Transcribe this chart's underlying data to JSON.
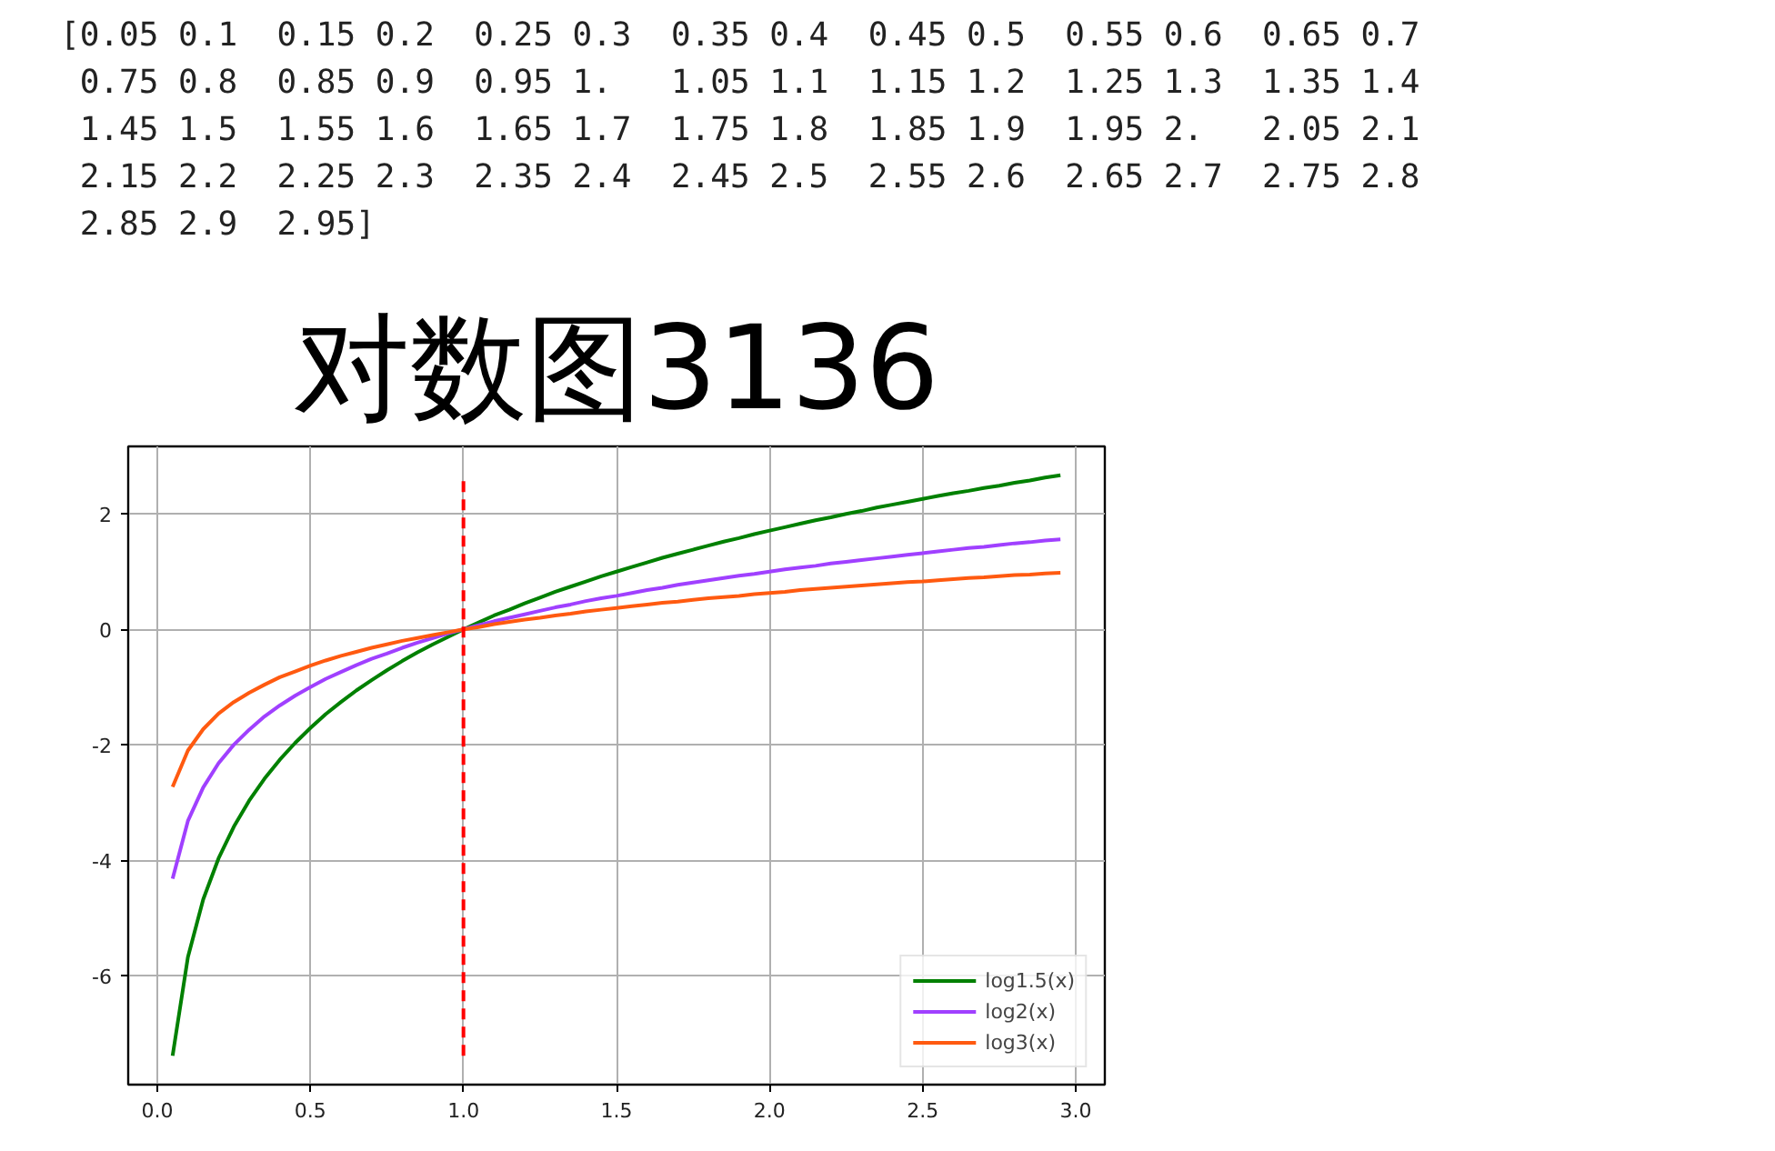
{
  "chart_data": {
    "type": "line",
    "title": "对数图3136",
    "annotations": [
      "[0.05 0.1  0.15 0.2  0.25 0.3  0.35 0.4  0.45 0.5  0.55 0.6  0.65 0.7",
      " 0.75 0.8  0.85 0.9  0.95 1.   1.05 1.1  1.15 1.2  1.25 1.3  1.35 1.4",
      " 1.45 1.5  1.55 1.6  1.65 1.7  1.75 1.8  1.85 1.9  1.95 2.   2.05 2.1",
      " 2.15 2.2  2.25 2.3  2.35 2.4  2.45 2.5  2.55 2.6  2.65 2.7  2.75 2.8",
      " 2.85 2.9  2.95]"
    ],
    "x": [
      0.05,
      0.1,
      0.15,
      0.2,
      0.25,
      0.3,
      0.35,
      0.4,
      0.45,
      0.5,
      0.55,
      0.6,
      0.65,
      0.7,
      0.75,
      0.8,
      0.85,
      0.9,
      0.95,
      1.0,
      1.05,
      1.1,
      1.15,
      1.2,
      1.25,
      1.3,
      1.35,
      1.4,
      1.45,
      1.5,
      1.55,
      1.6,
      1.65,
      1.7,
      1.75,
      1.8,
      1.85,
      1.9,
      1.95,
      2.0,
      2.05,
      2.1,
      2.15,
      2.2,
      2.25,
      2.3,
      2.35,
      2.4,
      2.45,
      2.5,
      2.55,
      2.6,
      2.65,
      2.7,
      2.75,
      2.8,
      2.85,
      2.9,
      2.95
    ],
    "series": [
      {
        "name": "log1.5(x)",
        "color": "#008000",
        "values": [
          -7.39,
          -5.68,
          -4.68,
          -3.97,
          -3.42,
          -2.97,
          -2.59,
          -2.26,
          -1.97,
          -1.71,
          -1.47,
          -1.26,
          -1.06,
          -0.88,
          -0.71,
          -0.55,
          -0.4,
          -0.26,
          -0.13,
          0,
          0.12,
          0.24,
          0.34,
          0.45,
          0.55,
          0.65,
          0.74,
          0.83,
          0.92,
          1.0,
          1.08,
          1.16,
          1.24,
          1.31,
          1.38,
          1.45,
          1.52,
          1.58,
          1.65,
          1.71,
          1.77,
          1.83,
          1.89,
          1.94,
          2.0,
          2.05,
          2.11,
          2.16,
          2.21,
          2.26,
          2.31,
          2.36,
          2.4,
          2.45,
          2.49,
          2.54,
          2.58,
          2.63,
          2.67
        ]
      },
      {
        "name": "log2(x)",
        "color": "#a040ff",
        "values": [
          -4.32,
          -3.32,
          -2.74,
          -2.32,
          -2.0,
          -1.74,
          -1.51,
          -1.32,
          -1.15,
          -1.0,
          -0.86,
          -0.74,
          -0.62,
          -0.51,
          -0.42,
          -0.32,
          -0.23,
          -0.15,
          -0.07,
          0,
          0.07,
          0.14,
          0.2,
          0.26,
          0.32,
          0.38,
          0.43,
          0.49,
          0.54,
          0.58,
          0.63,
          0.68,
          0.72,
          0.77,
          0.81,
          0.85,
          0.89,
          0.93,
          0.96,
          1.0,
          1.04,
          1.07,
          1.1,
          1.14,
          1.17,
          1.2,
          1.23,
          1.26,
          1.29,
          1.32,
          1.35,
          1.38,
          1.41,
          1.43,
          1.46,
          1.49,
          1.51,
          1.54,
          1.56
        ]
      },
      {
        "name": "log3(x)",
        "color": "#ff5a10",
        "values": [
          -2.73,
          -2.1,
          -1.73,
          -1.46,
          -1.26,
          -1.1,
          -0.96,
          -0.83,
          -0.73,
          -0.63,
          -0.54,
          -0.46,
          -0.39,
          -0.32,
          -0.26,
          -0.2,
          -0.15,
          -0.1,
          -0.05,
          0,
          0.04,
          0.09,
          0.13,
          0.17,
          0.2,
          0.24,
          0.27,
          0.31,
          0.34,
          0.37,
          0.4,
          0.43,
          0.46,
          0.48,
          0.51,
          0.54,
          0.56,
          0.58,
          0.61,
          0.63,
          0.65,
          0.68,
          0.7,
          0.72,
          0.74,
          0.76,
          0.78,
          0.8,
          0.82,
          0.83,
          0.85,
          0.87,
          0.89,
          0.9,
          0.92,
          0.94,
          0.95,
          0.97,
          0.98
        ]
      }
    ],
    "xlim": [
      -0.095,
      3.095
    ],
    "ylim": [
      -7.89,
      3.17
    ],
    "xticks": [
      {
        "value": 0,
        "label": "0.0"
      },
      0.5,
      {
        "value": 1,
        "label": "1.0"
      },
      1.5,
      {
        "value": 2,
        "label": "2.0"
      },
      2.5,
      {
        "value": 3,
        "label": "3.0"
      }
    ],
    "yticks": [
      -6,
      -4,
      -2,
      0,
      2
    ],
    "ref_lines": [
      {
        "axis": "x",
        "value": 1,
        "color": "#ff0000",
        "line_style": "dashed"
      }
    ],
    "grid": true,
    "legend": "bottom right"
  }
}
